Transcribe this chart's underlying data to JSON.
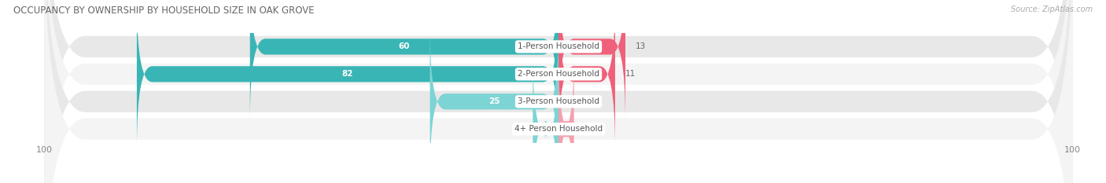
{
  "title": "OCCUPANCY BY OWNERSHIP BY HOUSEHOLD SIZE IN OAK GROVE",
  "source": "Source: ZipAtlas.com",
  "categories": [
    "1-Person Household",
    "2-Person Household",
    "3-Person Household",
    "4+ Person Household"
  ],
  "owner_values": [
    60,
    82,
    25,
    5
  ],
  "renter_values": [
    13,
    11,
    0,
    3
  ],
  "owner_color_dark": "#3ab5b5",
  "owner_color_light": "#7dd4d4",
  "renter_color_dark": "#f0607a",
  "renter_color_light": "#f5a0b0",
  "row_color_dark": "#e8e8e8",
  "row_color_light": "#f4f4f4",
  "axis_max": 100,
  "bar_height": 0.58,
  "title_fontsize": 8.5,
  "source_fontsize": 7,
  "label_fontsize": 7.5,
  "value_fontsize": 7.5,
  "tick_fontsize": 8,
  "legend_fontsize": 8
}
